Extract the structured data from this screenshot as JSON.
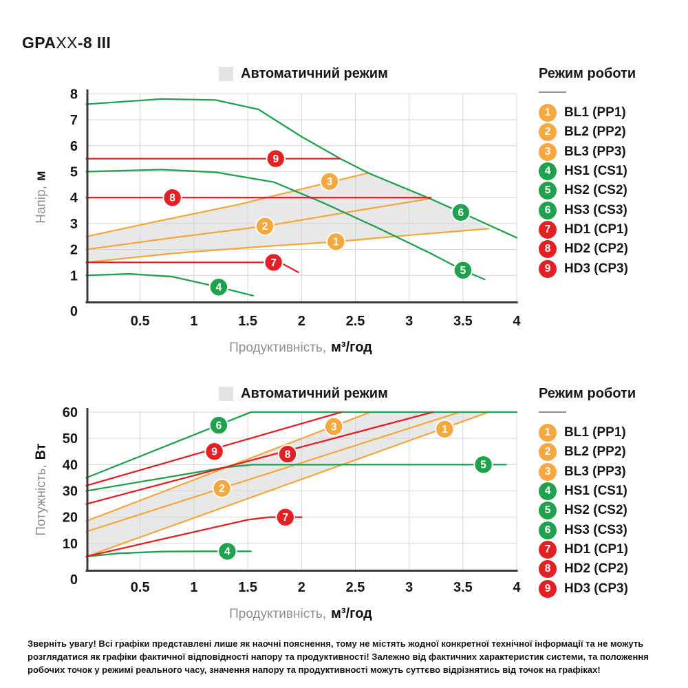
{
  "title": {
    "brand": "GPA",
    "model": "XX",
    "suffix": "-8 III"
  },
  "auto_mode_label": "Автоматичний режим",
  "mode_legend": {
    "title": "Режим роботи",
    "items": [
      {
        "num": "1",
        "label": "BL1 (PP1)",
        "color": "orange"
      },
      {
        "num": "2",
        "label": "BL2 (PP2)",
        "color": "orange"
      },
      {
        "num": "3",
        "label": "BL3 (PP3)",
        "color": "orange"
      },
      {
        "num": "4",
        "label": "HS1 (CS1)",
        "color": "green"
      },
      {
        "num": "5",
        "label": "HS2 (CS2)",
        "color": "green"
      },
      {
        "num": "6",
        "label": "HS3 (CS3)",
        "color": "green"
      },
      {
        "num": "7",
        "label": "HD1 (CP1)",
        "color": "red"
      },
      {
        "num": "8",
        "label": "HD2 (CP2)",
        "color": "red"
      },
      {
        "num": "9",
        "label": "HD3 (CP3)",
        "color": "red"
      }
    ]
  },
  "colors": {
    "orange": "#F6A840",
    "green": "#1FA14E",
    "red": "#E32124",
    "zone": "#E8E8E8",
    "grid": "#D4D4D4",
    "axis": "#3A3A3A",
    "legend_square": "#E4E4E4",
    "text_dark": "#161616",
    "text_gray": "#8F8F8F"
  },
  "disclaimer": "Зверніть увагу! Всі графіки представлені лише як наочні пояснення, тому не містять жодної конкретної технічної інформації та не можуть розглядатися як графіки фактичної відповідності напору та продуктивності! Залежно від фактичних характеристик системи, та положення робочих точок у режимі реального часу, значення напору та продуктивності можуть суттєво відрізнятись від точок на графіках!",
  "chart_data": [
    {
      "name": "head",
      "type": "line",
      "auto_zone_label": "Автоматичний режим",
      "xlabel": {
        "prefix": "Продуктивність,",
        "unit": "м³/год"
      },
      "ylabel": {
        "prefix": "Напір,",
        "unit": "м"
      },
      "xlim": [
        0,
        4
      ],
      "ylim": [
        0,
        8
      ],
      "xticks": [
        {
          "v": 0.5,
          "label": "0.5"
        },
        {
          "v": 1,
          "label": "1"
        },
        {
          "v": 1.5,
          "label": "1.5"
        },
        {
          "v": 2,
          "label": "2"
        },
        {
          "v": 2.5,
          "label": "2.5"
        },
        {
          "v": 3,
          "label": "3"
        },
        {
          "v": 3.5,
          "label": "3.5"
        },
        {
          "v": 4,
          "label": "4"
        }
      ],
      "yticks": [
        {
          "v": 0,
          "label": "0"
        },
        {
          "v": 1,
          "label": "1"
        },
        {
          "v": 2,
          "label": "2"
        },
        {
          "v": 3,
          "label": "3"
        },
        {
          "v": 4,
          "label": "4"
        },
        {
          "v": 5,
          "label": "5"
        },
        {
          "v": 6,
          "label": "6"
        },
        {
          "v": 7,
          "label": "7"
        },
        {
          "v": 8,
          "label": "8"
        }
      ],
      "auto_zone": [
        [
          0,
          1.5
        ],
        [
          0.8,
          1.85
        ],
        [
          1.6,
          2.1
        ],
        [
          2.32,
          2.3
        ],
        [
          3.0,
          2.55
        ],
        [
          3.74,
          2.8
        ],
        [
          3.48,
          3.43
        ],
        [
          3.2,
          3.95
        ],
        [
          2.62,
          4.95
        ],
        [
          2.0,
          4.33
        ],
        [
          1.4,
          3.72
        ],
        [
          0.7,
          3.12
        ],
        [
          0,
          2.5
        ]
      ],
      "series": [
        {
          "key": "BL1",
          "num": "1",
          "label": "BL1 (PP1)",
          "color": "orange",
          "points": [
            [
              0,
              1.5
            ],
            [
              0.8,
              1.85
            ],
            [
              1.6,
              2.1
            ],
            [
              2.32,
              2.3
            ],
            [
              3.0,
              2.55
            ],
            [
              3.74,
              2.8
            ]
          ],
          "marker": [
            2.32,
            2.3
          ]
        },
        {
          "key": "BL2",
          "num": "2",
          "label": "BL2 (PP2)",
          "color": "orange",
          "points": [
            [
              0,
              2.0
            ],
            [
              0.8,
              2.45
            ],
            [
              1.66,
              2.9
            ],
            [
              2.4,
              3.42
            ],
            [
              3.18,
              3.95
            ]
          ],
          "marker": [
            1.66,
            2.9
          ]
        },
        {
          "key": "BL3",
          "num": "3",
          "label": "BL3 (PP3)",
          "color": "orange",
          "points": [
            [
              0,
              2.5
            ],
            [
              0.7,
              3.12
            ],
            [
              1.4,
              3.72
            ],
            [
              2.0,
              4.33
            ],
            [
              2.62,
              4.95
            ]
          ],
          "marker": [
            2.26,
            4.62
          ]
        },
        {
          "key": "HS1",
          "num": "4",
          "label": "HS1 (CS1)",
          "color": "green",
          "points": [
            [
              0,
              1.0
            ],
            [
              0.4,
              1.06
            ],
            [
              0.8,
              0.95
            ],
            [
              1.23,
              0.55
            ],
            [
              1.55,
              0.22
            ]
          ],
          "marker": [
            1.23,
            0.55
          ]
        },
        {
          "key": "HS2",
          "num": "5",
          "label": "HS2 (CS2)",
          "color": "green",
          "points": [
            [
              0,
              5.0
            ],
            [
              0.7,
              5.08
            ],
            [
              1.2,
              4.98
            ],
            [
              1.74,
              4.6
            ],
            [
              2.2,
              3.8
            ],
            [
              2.7,
              2.85
            ],
            [
              3.2,
              1.85
            ],
            [
              3.5,
              1.2
            ],
            [
              3.7,
              0.85
            ]
          ],
          "marker": [
            3.5,
            1.2
          ]
        },
        {
          "key": "HS3",
          "num": "6",
          "label": "HS3 (CS3)",
          "color": "green",
          "points": [
            [
              0,
              7.6
            ],
            [
              0.7,
              7.8
            ],
            [
              1.2,
              7.76
            ],
            [
              1.6,
              7.4
            ],
            [
              2.0,
              6.35
            ],
            [
              2.36,
              5.5
            ],
            [
              2.62,
              4.95
            ],
            [
              3.2,
              3.95
            ],
            [
              3.48,
              3.43
            ],
            [
              4,
              2.45
            ]
          ],
          "marker": [
            3.48,
            3.43
          ]
        },
        {
          "key": "HD1",
          "num": "7",
          "label": "HD1 (CP1)",
          "color": "red",
          "points": [
            [
              0,
              1.5
            ],
            [
              1.8,
              1.5
            ],
            [
              1.97,
              1.12
            ]
          ],
          "marker": [
            1.74,
            1.5
          ]
        },
        {
          "key": "HD2",
          "num": "8",
          "label": "HD2 (CP2)",
          "color": "red",
          "points": [
            [
              0,
              4.0
            ],
            [
              3.2,
              4.0
            ]
          ],
          "marker": [
            0.8,
            4.0
          ]
        },
        {
          "key": "HD3",
          "num": "9",
          "label": "HD3 (CP3)",
          "color": "red",
          "points": [
            [
              0,
              5.5
            ],
            [
              2.36,
              5.5
            ]
          ],
          "marker": [
            1.76,
            5.5
          ]
        }
      ]
    },
    {
      "name": "power",
      "type": "line",
      "auto_zone_label": "Автоматичний режим",
      "xlabel": {
        "prefix": "Продуктивність,",
        "unit": "м³/год"
      },
      "ylabel": {
        "prefix": "Потужність,",
        "unit": "Вт"
      },
      "xlim": [
        0,
        4
      ],
      "ylim": [
        0,
        60
      ],
      "xticks": [
        {
          "v": 0.5,
          "label": "0.5"
        },
        {
          "v": 1,
          "label": "1"
        },
        {
          "v": 1.5,
          "label": "1.5"
        },
        {
          "v": 2,
          "label": "2"
        },
        {
          "v": 2.5,
          "label": "2.5"
        },
        {
          "v": 3,
          "label": "3"
        },
        {
          "v": 3.5,
          "label": "3.5"
        },
        {
          "v": 4,
          "label": "4"
        }
      ],
      "yticks": [
        {
          "v": 0,
          "label": "0"
        },
        {
          "v": 10,
          "label": "10"
        },
        {
          "v": 20,
          "label": "20"
        },
        {
          "v": 30,
          "label": "30"
        },
        {
          "v": 40,
          "label": "40"
        },
        {
          "v": 50,
          "label": "50"
        },
        {
          "v": 60,
          "label": "60"
        }
      ],
      "auto_zone": [
        [
          0,
          5
        ],
        [
          3.74,
          60
        ],
        [
          2.64,
          60
        ],
        [
          0,
          18.5
        ]
      ],
      "series": [
        {
          "key": "BL1",
          "num": "1",
          "label": "BL1 (PP1)",
          "color": "orange",
          "points": [
            [
              0,
              5
            ],
            [
              3.74,
              60
            ]
          ],
          "marker": [
            3.33,
            53.5
          ]
        },
        {
          "key": "BL2",
          "num": "2",
          "label": "BL2 (PP2)",
          "color": "orange",
          "points": [
            [
              0,
              14.5
            ],
            [
              3.47,
              60
            ]
          ],
          "marker": [
            1.26,
            31
          ]
        },
        {
          "key": "BL3",
          "num": "3",
          "label": "BL3 (PP3)",
          "color": "orange",
          "points": [
            [
              0,
              18.5
            ],
            [
              2.64,
              60
            ]
          ],
          "marker": [
            2.3,
            54.5
          ]
        },
        {
          "key": "HS1",
          "num": "4",
          "label": "HS1 (CS1)",
          "color": "green",
          "points": [
            [
              0,
              5
            ],
            [
              0.3,
              6.2
            ],
            [
              0.7,
              6.9
            ],
            [
              1.1,
              7
            ],
            [
              1.53,
              7
            ]
          ],
          "marker": [
            1.31,
            7
          ]
        },
        {
          "key": "HS2",
          "num": "5",
          "label": "HS2 (CS2)",
          "color": "green",
          "points": [
            [
              0,
              30
            ],
            [
              0.8,
              35.5
            ],
            [
              1.3,
              39
            ],
            [
              1.55,
              40
            ],
            [
              3.9,
              40
            ]
          ],
          "marker": [
            3.69,
            40
          ]
        },
        {
          "key": "HS3",
          "num": "6",
          "label": "HS3 (CS3)",
          "color": "green",
          "points": [
            [
              0,
              35
            ],
            [
              1.53,
              60
            ],
            [
              4,
              60
            ]
          ],
          "marker": [
            1.23,
            55
          ]
        },
        {
          "key": "HD1",
          "num": "7",
          "label": "HD1 (CP1)",
          "color": "red",
          "points": [
            [
              0,
              5
            ],
            [
              0.8,
              12.5
            ],
            [
              1.5,
              19
            ],
            [
              1.7,
              20
            ],
            [
              2.0,
              20
            ]
          ],
          "marker": [
            1.85,
            20
          ]
        },
        {
          "key": "HD2",
          "num": "8",
          "label": "HD2 (CP2)",
          "color": "red",
          "points": [
            [
              0,
              25
            ],
            [
              3.22,
              60
            ]
          ],
          "marker": [
            1.87,
            44
          ]
        },
        {
          "key": "HD3",
          "num": "9",
          "label": "HD3 (CP3)",
          "color": "red",
          "points": [
            [
              0,
              32
            ],
            [
              2.37,
              60
            ]
          ],
          "marker": [
            1.19,
            45
          ]
        }
      ]
    }
  ]
}
